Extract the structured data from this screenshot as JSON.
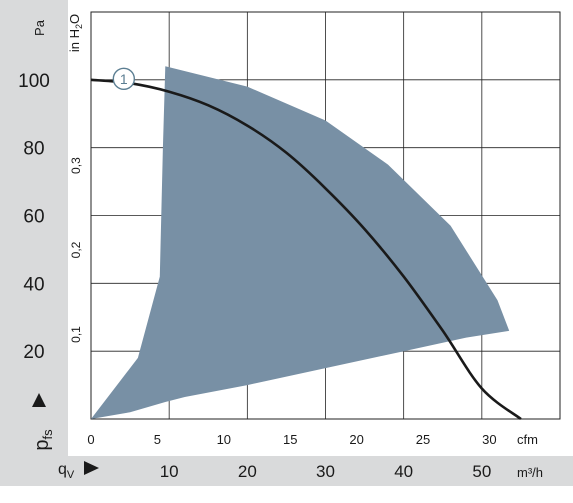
{
  "chart_data": {
    "type": "line",
    "y_axis_left": {
      "label_main": "p",
      "label_sub": "fs",
      "unit": "Pa",
      "ticks": [
        20,
        40,
        60,
        80,
        100
      ],
      "range": [
        0,
        120
      ]
    },
    "y_axis_inner": {
      "unit": "in H",
      "unit_sub": "2",
      "unit_tail": "O",
      "ticks": [
        {
          "label": "0,1",
          "value": 0.1
        },
        {
          "label": "0,2",
          "value": 0.2
        },
        {
          "label": "0,3",
          "value": 0.3
        }
      ]
    },
    "x_axis_cfm": {
      "unit": "cfm",
      "ticks": [
        "0",
        "5",
        "10",
        "15",
        "20",
        "25",
        "30"
      ],
      "values": [
        0,
        5,
        10,
        15,
        20,
        25,
        30
      ]
    },
    "x_axis_m3h": {
      "label_main": "q",
      "label_sub": "V",
      "unit": "m³/h",
      "ticks": [
        "10",
        "20",
        "30",
        "40",
        "50"
      ],
      "values": [
        10,
        20,
        30,
        40,
        50
      ]
    },
    "x_range_m3h": [
      0,
      60
    ],
    "grid": true,
    "series": [
      {
        "name": "1",
        "color": "#1a1a1a",
        "x_m3h": [
          0,
          5,
          10,
          15,
          20,
          25,
          30,
          35,
          40,
          45,
          50,
          55
        ],
        "y_pa": [
          100,
          99,
          96.5,
          92.5,
          86.5,
          78.5,
          68,
          56,
          42,
          26,
          9,
          0
        ]
      }
    ],
    "operating_range": {
      "color": "#7890a5",
      "outline_x_m3h": [
        9.5,
        20,
        30,
        38,
        46,
        52,
        53.5,
        48,
        40,
        30,
        20,
        12,
        9.5,
        5,
        0,
        6,
        8.8,
        9.2,
        9.5
      ],
      "outline_y_pa": [
        104,
        98,
        88,
        75,
        57,
        35,
        26,
        24,
        20,
        15,
        10,
        6.5,
        5,
        2,
        0,
        18,
        42,
        80,
        104
      ]
    }
  }
}
